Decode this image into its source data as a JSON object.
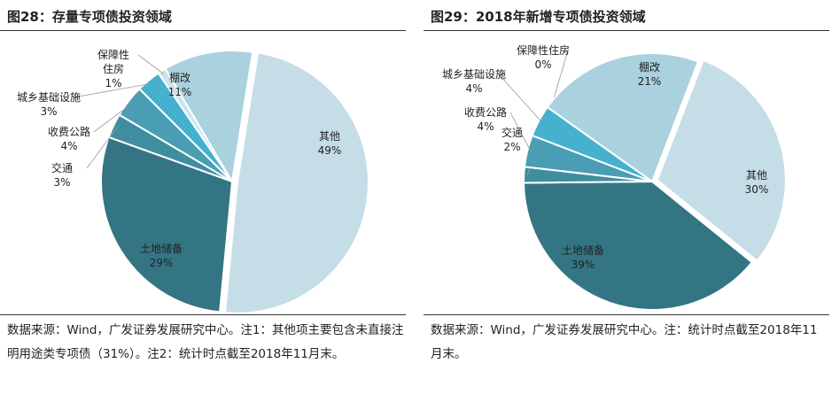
{
  "charts": [
    {
      "title": "图28：存量专项债投资领域",
      "note": "数据来源：Wind，广发证券发展研究中心。注1：其他项主要包含未直接注明用途类专项债（31%）。注2：统计时点截至2018年11月末。"
    },
    {
      "title": "图29：2018年新增专项债投资领域",
      "note": "数据来源：Wind，广发证券发展研究中心。注：统计时点截至2018年11月末。"
    }
  ],
  "chart_data": [
    {
      "type": "pie",
      "title": "图28：存量专项债投资领域",
      "slices": [
        {
          "label": "其他",
          "value": 49,
          "value_label": "49%",
          "color": "#c5dde6"
        },
        {
          "label": "土地储备",
          "value": 29,
          "value_label": "29%",
          "color": "#347584"
        },
        {
          "label": "交通",
          "value": 3,
          "value_label": "3%",
          "color": "#3f8ea0"
        },
        {
          "label": "收费公路",
          "value": 4,
          "value_label": "4%",
          "color": "#4a9eb3"
        },
        {
          "label": "城乡基础设施",
          "value": 3,
          "value_label": "3%",
          "color": "#45b1cf"
        },
        {
          "label": "保障性住房",
          "value": 1,
          "value_label": "1%",
          "color": "#cfe3eb"
        },
        {
          "label": "棚改",
          "value": 11,
          "value_label": "11%",
          "color": "#a9d1de"
        }
      ],
      "legend": "none"
    },
    {
      "type": "pie",
      "title": "图29：2018年新增专项债投资领域",
      "slices": [
        {
          "label": "其他",
          "value": 30,
          "value_label": "30%",
          "color": "#c5dde6"
        },
        {
          "label": "土地储备",
          "value": 39,
          "value_label": "39%",
          "color": "#347584"
        },
        {
          "label": "交通",
          "value": 2,
          "value_label": "2%",
          "color": "#3f8ea0"
        },
        {
          "label": "收费公路",
          "value": 4,
          "value_label": "4%",
          "color": "#4a9eb3"
        },
        {
          "label": "城乡基础设施",
          "value": 4,
          "value_label": "4%",
          "color": "#45b1cf"
        },
        {
          "label": "保障性住房",
          "value": 0,
          "value_label": "0%",
          "color": "#cfe3eb"
        },
        {
          "label": "棚改",
          "value": 21,
          "value_label": "21%",
          "color": "#a9d1de"
        }
      ],
      "legend": "none"
    }
  ]
}
